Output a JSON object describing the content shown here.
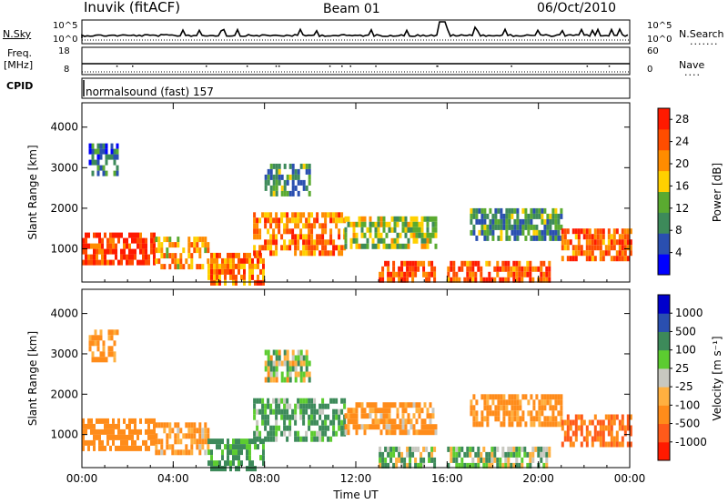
{
  "header": {
    "station": "Inuvik (fitACF)",
    "beam": "Beam 01",
    "date": "06/Oct/2010"
  },
  "strip_labels": {
    "nsky": "N.Sky",
    "nsearch": "N.Search",
    "freq_line1": "Freq.",
    "freq_line2": "[MHz]",
    "nave": "Nave",
    "cpid": "CPID",
    "cpid_value": "normalsound (fast) 157",
    "nsky_ticks": [
      "10^5",
      "10^0"
    ],
    "nsearch_ticks": [
      "10^5",
      "10^0"
    ],
    "freq_ticks": [
      "18",
      "8"
    ],
    "nave_ticks": [
      "60",
      "0"
    ]
  },
  "colors": {
    "power_scale": [
      "#0000ff",
      "#2a4fb0",
      "#3d8a5a",
      "#5aaa30",
      "#ffd000",
      "#ff8c00",
      "#ff4d00",
      "#ff1a00"
    ],
    "velocity_scale": [
      "#ff1a00",
      "#ff5a1a",
      "#ff8c1a",
      "#ffb040",
      "#c8c8c0",
      "#5ccc30",
      "#3d8a5a",
      "#2a4fb0",
      "#0000cc"
    ],
    "ground_scatter": "#aaaaa0"
  },
  "chart_data": [
    {
      "type": "heatmap",
      "title": "Power",
      "xlabel": "",
      "ylabel": "Slant Range [km]",
      "x_ticks": [
        "00:00",
        "04:00",
        "08:00",
        "12:00",
        "16:00",
        "20:00",
        "00:00"
      ],
      "y_ticks": [
        "1000",
        "2000",
        "3000",
        "4000"
      ],
      "ylim": [
        180,
        4600
      ],
      "xlim_hours": [
        0,
        24
      ],
      "colorbar_label": "Power [dB]",
      "colorbar_ticks": [
        "4",
        "8",
        "12",
        "16",
        "20",
        "24",
        "28"
      ],
      "colorbar_range": [
        0,
        30
      ],
      "echo_regions": [
        {
          "t": [
            0.0,
            3.2
          ],
          "r": [
            600,
            1400
          ],
          "value": 26
        },
        {
          "t": [
            3.2,
            5.5
          ],
          "r": [
            500,
            1300
          ],
          "value": 20
        },
        {
          "t": [
            5.5,
            8.0
          ],
          "r": [
            200,
            900
          ],
          "value": 22
        },
        {
          "t": [
            7.5,
            11.5
          ],
          "r": [
            900,
            1900
          ],
          "value": 22
        },
        {
          "t": [
            11.5,
            15.5
          ],
          "r": [
            1100,
            1800
          ],
          "value": 14
        },
        {
          "t": [
            13.0,
            15.5
          ],
          "r": [
            200,
            700
          ],
          "value": 26
        },
        {
          "t": [
            16.0,
            20.5
          ],
          "r": [
            200,
            700
          ],
          "value": 24
        },
        {
          "t": [
            17.0,
            21.0
          ],
          "r": [
            1300,
            2000
          ],
          "value": 10
        },
        {
          "t": [
            21.0,
            24.0
          ],
          "r": [
            800,
            1500
          ],
          "value": 24
        },
        {
          "t": [
            8.0,
            10.0
          ],
          "r": [
            2300,
            3100
          ],
          "value": 10
        },
        {
          "t": [
            0.3,
            1.5
          ],
          "r": [
            2800,
            3600
          ],
          "value": 8
        }
      ]
    },
    {
      "type": "heatmap",
      "title": "Velocity",
      "xlabel": "Time UT",
      "ylabel": "Slant Range [km]",
      "x_ticks": [
        "00:00",
        "04:00",
        "08:00",
        "12:00",
        "16:00",
        "20:00",
        "00:00"
      ],
      "y_ticks": [
        "1000",
        "2000",
        "3000",
        "4000"
      ],
      "ylim": [
        180,
        4600
      ],
      "xlim_hours": [
        0,
        24
      ],
      "colorbar_label": "Velocity [m s⁻¹]",
      "colorbar_ticks": [
        "1000",
        "500",
        "100",
        "25",
        "-25",
        "-100",
        "-500",
        "-1000"
      ],
      "echo_regions": [
        {
          "t": [
            0.0,
            3.2
          ],
          "r": [
            600,
            1400
          ],
          "value": -300
        },
        {
          "t": [
            3.2,
            5.5
          ],
          "r": [
            500,
            1300
          ],
          "value": -150
        },
        {
          "t": [
            5.5,
            8.0
          ],
          "r": [
            200,
            900
          ],
          "value": 200
        },
        {
          "t": [
            7.5,
            11.5
          ],
          "r": [
            900,
            1900
          ],
          "value": 150
        },
        {
          "t": [
            11.5,
            15.5
          ],
          "r": [
            1100,
            1800
          ],
          "value": -150
        },
        {
          "t": [
            13.0,
            15.5
          ],
          "r": [
            200,
            700
          ],
          "value": 80
        },
        {
          "t": [
            16.0,
            20.5
          ],
          "r": [
            200,
            700
          ],
          "value": 60
        },
        {
          "t": [
            17.0,
            21.0
          ],
          "r": [
            1300,
            2000
          ],
          "value": -200
        },
        {
          "t": [
            21.0,
            24.0
          ],
          "r": [
            800,
            1500
          ],
          "value": -500
        },
        {
          "t": [
            8.0,
            10.0
          ],
          "r": [
            2300,
            3100
          ],
          "value": 0
        },
        {
          "t": [
            0.3,
            1.5
          ],
          "r": [
            2800,
            3600
          ],
          "value": -200
        }
      ]
    }
  ]
}
